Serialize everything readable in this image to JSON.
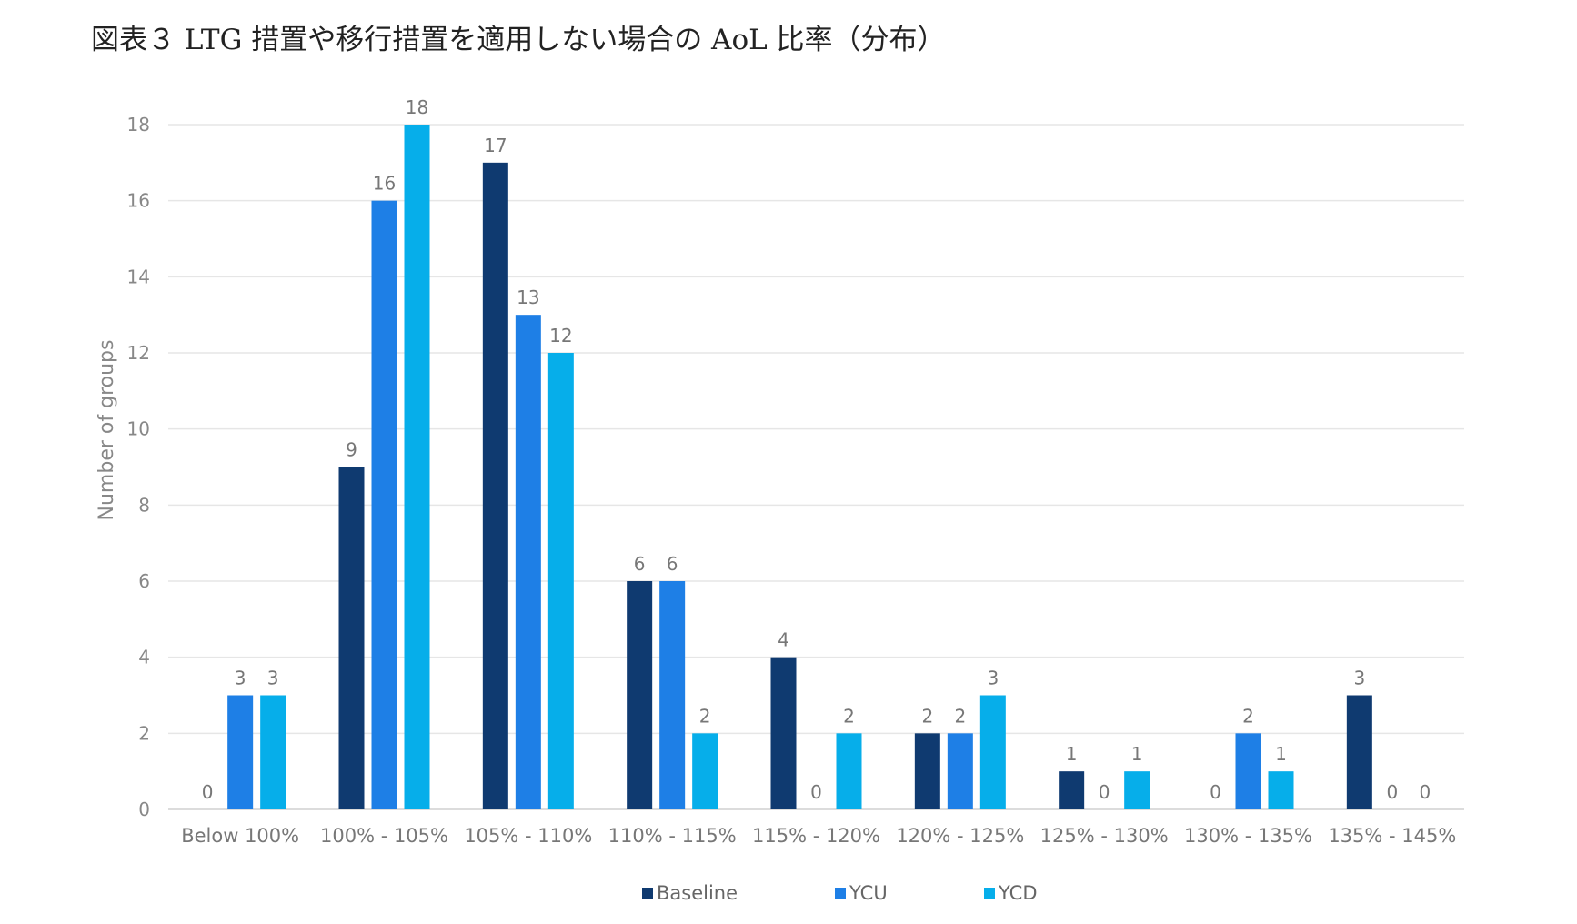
{
  "page": {
    "title": "図表３ LTG 措置や移行措置を適用しない場合の AoL 比率（分布）"
  },
  "chart_data": {
    "type": "bar",
    "title": "",
    "xlabel": "",
    "ylabel": "Number of groups",
    "ylim": [
      0,
      18
    ],
    "yticks": [
      0,
      2,
      4,
      6,
      8,
      10,
      12,
      14,
      16,
      18
    ],
    "grid": true,
    "legend_position": "bottom",
    "categories": [
      "Below 100%",
      "100% - 105%",
      "105% - 110%",
      "110% - 115%",
      "115% - 120%",
      "120% - 125%",
      "125% - 130%",
      "130% - 135%",
      "135% - 145%"
    ],
    "series": [
      {
        "name": "Baseline",
        "color": "#0f3a70",
        "values": [
          0,
          9,
          17,
          6,
          4,
          2,
          1,
          0,
          3
        ]
      },
      {
        "name": "YCU",
        "color": "#1e7fe6",
        "values": [
          3,
          16,
          13,
          6,
          0,
          2,
          0,
          2,
          0
        ]
      },
      {
        "name": "YCD",
        "color": "#06aeea",
        "values": [
          3,
          18,
          12,
          2,
          2,
          3,
          1,
          1,
          0
        ]
      }
    ]
  }
}
